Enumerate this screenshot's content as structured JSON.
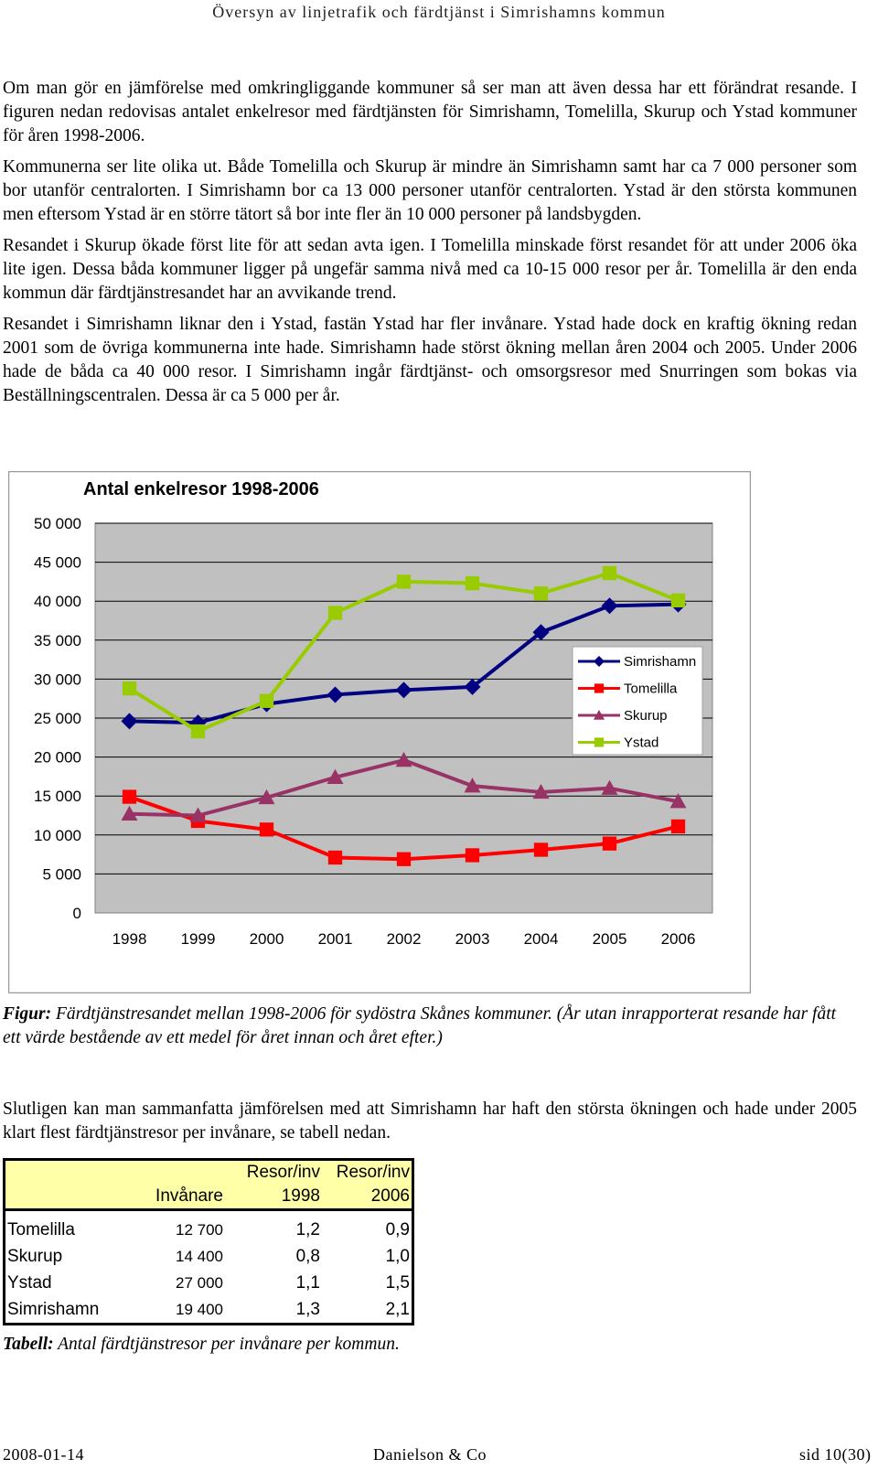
{
  "header": "Översyn av linjetrafik och färdtjänst i Simrishamns kommun",
  "paragraphs": [
    "Om man gör en jämförelse med omkringliggande kommuner så ser man att även dessa har ett förändrat resande. I figuren nedan redovisas antalet enkelresor med färdtjänsten för Simrishamn, Tomelilla, Skurup och Ystad kommuner för åren 1998-2006.",
    "Kommunerna ser lite olika ut. Både Tomelilla och Skurup är mindre än Simrishamn samt har ca 7 000 personer som bor utanför centralorten. I Simrishamn bor ca 13 000 personer utanför centralorten. Ystad är den största kommunen men eftersom Ystad är en större tätort så bor inte fler än 10 000 personer på landsbygden.",
    "Resandet i Skurup ökade först lite för att sedan avta igen. I Tomelilla minskade först resandet för att under 2006 öka lite igen. Dessa båda kommuner ligger på ungefär samma nivå med ca 10-15 000 resor per år. Tomelilla är den enda kommun där färdtjänstresandet har an avvikande trend.",
    "Resandet i Simrishamn liknar den i Ystad, fastän Ystad har fler invånare. Ystad hade dock en kraftig ökning redan 2001 som de övriga kommunerna inte hade. Simrishamn hade störst ökning mellan åren 2004 och 2005. Under 2006 hade de båda ca 40 000 resor. I Simrishamn ingår färdtjänst- och omsorgsresor med Snurringen som bokas via Beställningscentralen. Dessa är ca 5 000 per år."
  ],
  "chart_data": {
    "type": "line",
    "title": "Antal enkelresor 1998-2006",
    "x": [
      "1998",
      "1999",
      "2000",
      "2001",
      "2002",
      "2003",
      "2004",
      "2005",
      "2006"
    ],
    "ylim": [
      0,
      50000
    ],
    "yticks": [
      "0",
      "5 000",
      "10 000",
      "15 000",
      "20 000",
      "25 000",
      "30 000",
      "35 000",
      "40 000",
      "45 000",
      "50 000"
    ],
    "grid": true,
    "legend_position": "right",
    "series": [
      {
        "name": "Simrishamn",
        "color": "#000080",
        "marker": "diamond",
        "values": [
          24600,
          24400,
          26800,
          28000,
          28600,
          29000,
          36000,
          39400,
          39600
        ]
      },
      {
        "name": "Tomelilla",
        "color": "#ff0000",
        "marker": "square",
        "values": [
          14900,
          11800,
          10700,
          7100,
          6900,
          7400,
          8100,
          8900,
          11100
        ]
      },
      {
        "name": "Skurup",
        "color": "#993366",
        "marker": "triangle",
        "values": [
          12700,
          12500,
          14800,
          17400,
          19600,
          16300,
          15500,
          16000,
          14300
        ]
      },
      {
        "name": "Ystad",
        "color": "#99cc00",
        "marker": "square",
        "values": [
          28800,
          23300,
          27200,
          38500,
          42500,
          42300,
          41000,
          43600,
          40100
        ]
      }
    ]
  },
  "figure_caption": {
    "label": "Figur:",
    "text": " Färdtjänstresandet mellan 1998-2006 för sydöstra Skånes kommuner. (År utan inrapporterat resande har fått ett värde bestående av ett medel för året innan och året efter.)"
  },
  "paragraph_after": "Slutligen kan man sammanfatta jämförelsen med att Simrishamn har haft den största ökningen och hade under 2005 klart flest färdtjänstresor per invånare, se tabell nedan.",
  "table": {
    "headers": {
      "col1": "Invånare",
      "col2_line1": "Resor/inv",
      "col2_line2": "1998",
      "col3_line1": "Resor/inv",
      "col3_line2": "2006"
    },
    "rows": [
      {
        "name": "Tomelilla",
        "pop": "12 700",
        "r1998": "1,2",
        "r2006": "0,9"
      },
      {
        "name": "Skurup",
        "pop": "14 400",
        "r1998": "0,8",
        "r2006": "1,0"
      },
      {
        "name": "Ystad",
        "pop": "27 000",
        "r1998": "1,1",
        "r2006": "1,5"
      },
      {
        "name": "Simrishamn",
        "pop": "19 400",
        "r1998": "1,3",
        "r2006": "2,1"
      }
    ]
  },
  "table_caption": {
    "label": "Tabell:",
    "text": " Antal färdtjänstresor per invånare per kommun."
  },
  "footer": {
    "date": "2008-01-14",
    "company": "Danielson & Co",
    "page": "sid 10(30)"
  }
}
